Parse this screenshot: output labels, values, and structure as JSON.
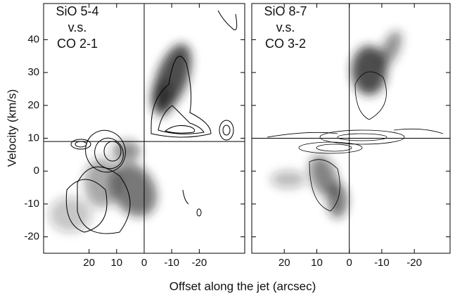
{
  "x_label": "Offset along the jet (arcsec)",
  "y_label": "Velocity (km/s)",
  "chart_data": [
    {
      "type": "heatmap",
      "title_lines": [
        "SiO 5-4",
        "v.s.",
        "CO 2-1"
      ],
      "xlim": [
        36.5,
        -36.5
      ],
      "xticks": [
        20,
        10,
        0,
        -10,
        -20
      ],
      "ylim": [
        -25,
        51
      ],
      "yticks": [
        -20,
        -10,
        0,
        10,
        20,
        30,
        40
      ],
      "vline": 0,
      "hline": 9
    },
    {
      "type": "heatmap",
      "title_lines": [
        "SiO 8-7",
        "v.s.",
        "CO 3-2"
      ],
      "xlim": [
        30,
        -31
      ],
      "xticks": [
        20,
        10,
        0,
        -10,
        -20
      ],
      "ylim": [
        -25,
        51
      ],
      "yticks": [
        -20,
        -10,
        0,
        10,
        20,
        30,
        40
      ],
      "vline": 0,
      "hline": 10
    }
  ]
}
